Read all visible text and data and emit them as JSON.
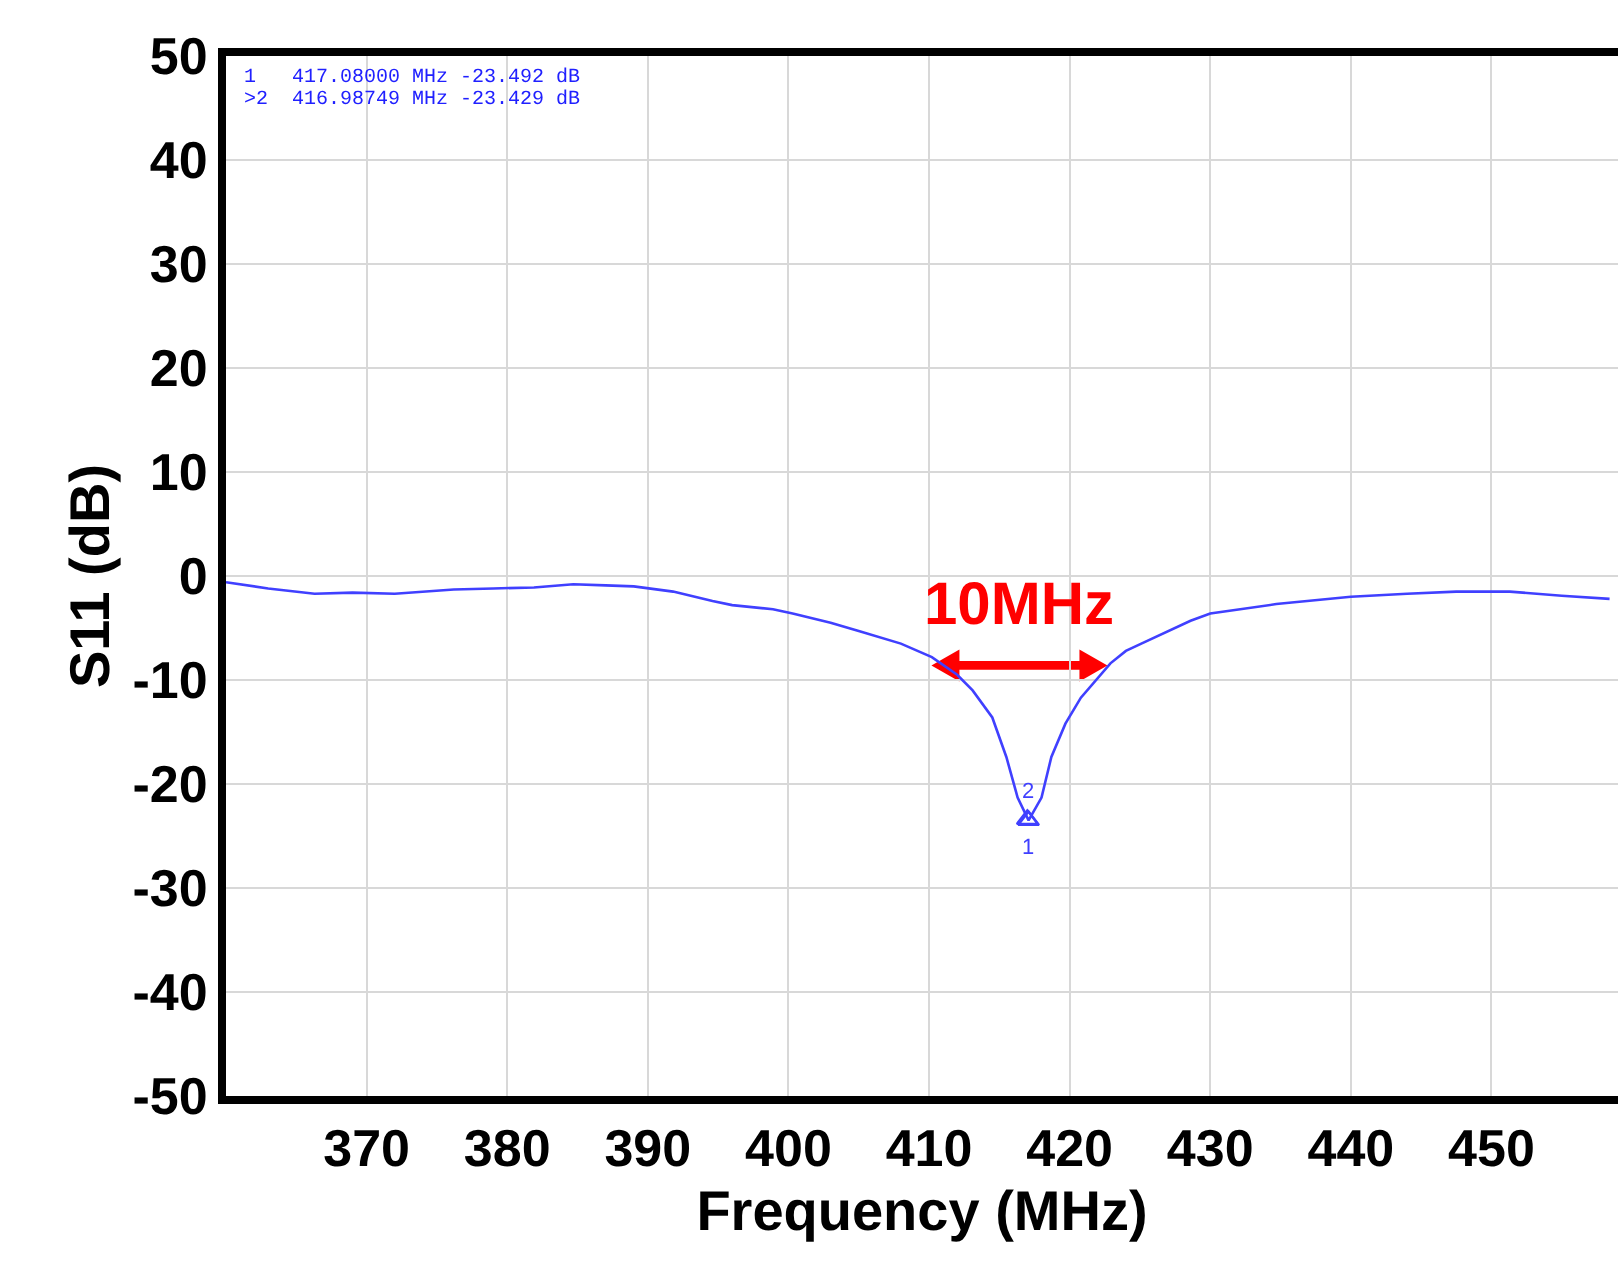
{
  "chart_data": {
    "type": "line",
    "xlabel": "Frequency (MHz)",
    "ylabel": "S11 (dB)",
    "xlim": [
      360,
      459
    ],
    "xticks": [
      370,
      380,
      390,
      400,
      410,
      420,
      430,
      440,
      450
    ],
    "ylim": [
      -50,
      50
    ],
    "yticks": [
      -50,
      -40,
      -30,
      -20,
      -10,
      0,
      10,
      20,
      30,
      40,
      50
    ],
    "grid": true,
    "legend": false,
    "series": [
      {
        "color": "#4040ff",
        "marker": "none",
        "x": [
          360,
          363,
          366.3,
          369,
          372,
          376.2,
          379,
          381.9,
          384.7,
          387,
          389,
          391.8,
          394.6,
          396,
          398.9,
          400.3,
          403,
          405,
          408,
          410.2,
          412,
          413.1,
          414.5,
          415.5,
          416.3,
          417.08,
          418,
          418.7,
          419.7,
          420.8,
          422.9,
          424,
          425.1,
          428.6,
          430,
          434.7,
          440,
          444,
          447.5,
          451.3,
          455,
          458.4
        ],
        "values": [
          -0.6,
          -1.2,
          -1.7,
          -1.6,
          -1.7,
          -1.3,
          -1.2,
          -1.1,
          -0.8,
          -0.9,
          -1,
          -1.5,
          -2.4,
          -2.8,
          -3.2,
          -3.6,
          -4.5,
          -5.3,
          -6.5,
          -7.8,
          -9.5,
          -11,
          -13.6,
          -17.4,
          -21.3,
          -23.5,
          -21.3,
          -17.4,
          -14.2,
          -11.7,
          -8.4,
          -7.2,
          -6.5,
          -4.3,
          -3.6,
          -2.7,
          -2.0,
          -1.7,
          -1.5,
          -1.5,
          -1.9,
          -2.2
        ]
      },
      {
        "type": "scatter",
        "color": "#4040ff",
        "marker": "triangle",
        "x": [
          417.08,
          416.98749
        ],
        "values": [
          -23.5,
          -23.4
        ]
      }
    ],
    "annotations": [
      "1   417.08000 MHz -23.492 dB",
      ">2  416.98749 MHz -23.429 dB",
      "1",
      "2",
      "10MHz"
    ]
  }
}
